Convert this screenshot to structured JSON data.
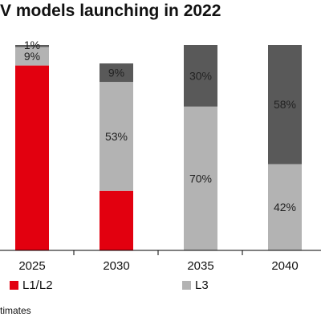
{
  "title": "V models launching in 2022",
  "source": "timates",
  "colors": {
    "L1/L2": "#e2000f",
    "L3": "#b3b3b3",
    "L4": "#595959",
    "axis": "#000000"
  },
  "chart_data": {
    "type": "bar",
    "stacked": true,
    "categories": [
      "2025",
      "2030",
      "2035",
      "2040"
    ],
    "series": [
      {
        "name": "L1/L2",
        "key": "L1/L2",
        "values": [
          90,
          29,
          0,
          0
        ],
        "labels": [
          "",
          "",
          "",
          ""
        ]
      },
      {
        "name": "L3",
        "key": "L3",
        "values": [
          9,
          53,
          70,
          42
        ],
        "labels": [
          "9%",
          "53%",
          "70%",
          "42%"
        ]
      },
      {
        "name": "",
        "key": "L4",
        "values": [
          1,
          9,
          30,
          58
        ],
        "labels": [
          "1%",
          "9%",
          "30%",
          "58%"
        ]
      }
    ],
    "ylim": [
      0,
      100
    ],
    "legend": "bottom"
  },
  "legend": [
    {
      "label": "L1/L2",
      "key": "L1/L2"
    },
    {
      "label": "L3",
      "key": "L3"
    }
  ]
}
